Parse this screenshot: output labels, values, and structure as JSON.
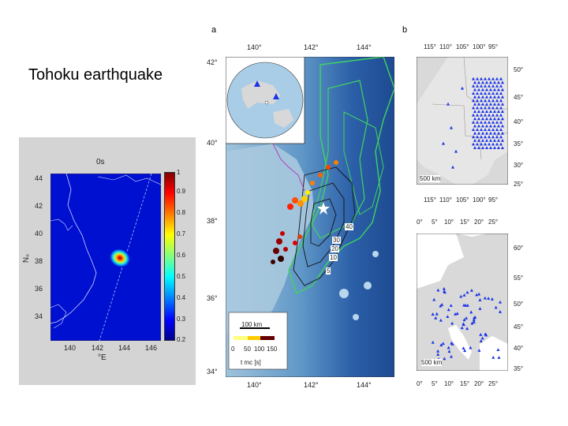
{
  "slide": {
    "title": "Tohoku earthquake"
  },
  "left_map": {
    "time_label": "0s",
    "lat_ticks": [
      "44",
      "42",
      "40",
      "38",
      "36",
      "34"
    ],
    "lon_ticks": [
      "140",
      "142",
      "144",
      "146"
    ],
    "ylabel": "°N",
    "xlabel": "°E",
    "colorbar_ticks": [
      "1",
      "0.9",
      "0.8",
      "0.7",
      "0.6",
      "0.5",
      "0.4",
      "0.3",
      "0.2"
    ]
  },
  "panel_a": {
    "letter": "a",
    "lat_ticks": [
      "42°",
      "40°",
      "38°",
      "36°",
      "34°"
    ],
    "lon_ticks": [
      "140°",
      "142°",
      "144°"
    ],
    "contour_labels": [
      "40",
      "30",
      "20",
      "10",
      "5"
    ],
    "scale_label": "100 km",
    "time_ticks": [
      "0",
      "50",
      "100",
      "150"
    ],
    "time_label": "t mc [s]"
  },
  "panel_b": {
    "letter": "b",
    "us_lon_ticks": [
      "115°",
      "110°",
      "105°",
      "100°",
      "95°"
    ],
    "us_lat_ticks": [
      "50°",
      "45°",
      "40°",
      "35°",
      "30°",
      "25°"
    ],
    "us_scale": "500 km",
    "eu_lon_ticks": [
      "0°",
      "5°",
      "10°",
      "15°",
      "20°",
      "25°"
    ],
    "eu_lat_ticks": [
      "60°",
      "55°",
      "50°",
      "45°",
      "40°",
      "35°"
    ],
    "eu_scale": "500 km"
  },
  "colors": {
    "jet_low": "#00008f",
    "jet_high": "#800000",
    "station": "#1a33e6",
    "ocean": "#2a5fa8"
  }
}
